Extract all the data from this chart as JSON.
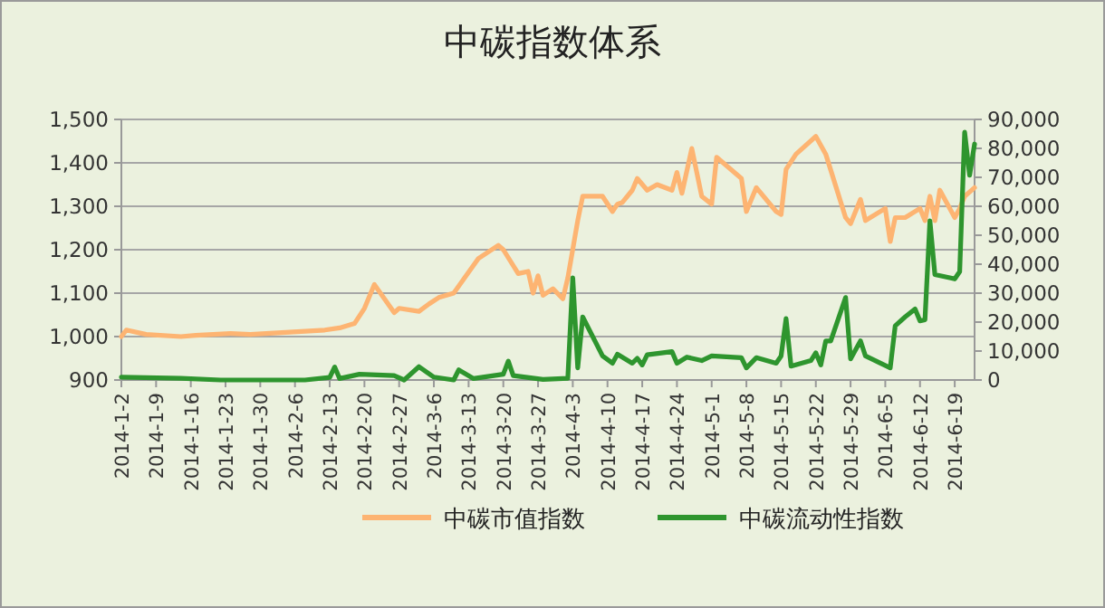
{
  "chart_data": {
    "type": "line",
    "title": "中碳指数体系",
    "xlim": [
      "2014-01-02",
      "2014-06-23"
    ],
    "xticks": [
      {
        "value": "2014-01-02",
        "label": "2014-1-2"
      },
      {
        "value": "2014-01-09",
        "label": "2014-1-9"
      },
      {
        "value": "2014-01-16",
        "label": "2014-1-16"
      },
      {
        "value": "2014-01-23",
        "label": "2014-1-23"
      },
      {
        "value": "2014-01-30",
        "label": "2014-1-30"
      },
      {
        "value": "2014-02-06",
        "label": "2014-2-6"
      },
      {
        "value": "2014-02-13",
        "label": "2014-2-13"
      },
      {
        "value": "2014-02-20",
        "label": "2014-2-20"
      },
      {
        "value": "2014-02-27",
        "label": "2014-2-27"
      },
      {
        "value": "2014-03-06",
        "label": "2014-3-6"
      },
      {
        "value": "2014-03-13",
        "label": "2014-3-13"
      },
      {
        "value": "2014-03-20",
        "label": "2014-3-20"
      },
      {
        "value": "2014-03-27",
        "label": "2014-3-27"
      },
      {
        "value": "2014-04-03",
        "label": "2014-4-3"
      },
      {
        "value": "2014-04-10",
        "label": "2014-4-10"
      },
      {
        "value": "2014-04-17",
        "label": "2014-4-17"
      },
      {
        "value": "2014-04-24",
        "label": "2014-4-24"
      },
      {
        "value": "2014-05-01",
        "label": "2014-5-1"
      },
      {
        "value": "2014-05-08",
        "label": "2014-5-8"
      },
      {
        "value": "2014-05-15",
        "label": "2014-5-15"
      },
      {
        "value": "2014-05-22",
        "label": "2014-5-22"
      },
      {
        "value": "2014-05-29",
        "label": "2014-5-29"
      },
      {
        "value": "2014-06-05",
        "label": "2014-6-5"
      },
      {
        "value": "2014-06-12",
        "label": "2014-6-12"
      },
      {
        "value": "2014-06-19",
        "label": "2014-6-19"
      }
    ],
    "ylim": [
      900,
      1500
    ],
    "yticks": [
      {
        "value": 900,
        "label": "900"
      },
      {
        "value": 1000,
        "label": "1,000"
      },
      {
        "value": 1100,
        "label": "1,100"
      },
      {
        "value": 1200,
        "label": "1,200"
      },
      {
        "value": 1300,
        "label": "1,300"
      },
      {
        "value": 1400,
        "label": "1,400"
      },
      {
        "value": 1500,
        "label": "1,500"
      }
    ],
    "y2lim": [
      0,
      90000
    ],
    "y2ticks": [
      {
        "value": 0,
        "label": "0"
      },
      {
        "value": 10000,
        "label": "10,000"
      },
      {
        "value": 20000,
        "label": "20,000"
      },
      {
        "value": 30000,
        "label": "30,000"
      },
      {
        "value": 40000,
        "label": "40,000"
      },
      {
        "value": 50000,
        "label": "50,000"
      },
      {
        "value": 60000,
        "label": "60,000"
      },
      {
        "value": 70000,
        "label": "70,000"
      },
      {
        "value": 80000,
        "label": "80,000"
      },
      {
        "value": 90000,
        "label": "90,000"
      }
    ],
    "grid": "y",
    "legend": "bottom",
    "series": [
      {
        "name": "中碳市值指数",
        "color": "#fdb472",
        "x": [
          "2014-01-02",
          "2014-01-03",
          "2014-01-07",
          "2014-01-14",
          "2014-01-17",
          "2014-01-24",
          "2014-01-28",
          "2014-02-12",
          "2014-02-15",
          "2014-02-18",
          "2014-02-20",
          "2014-02-22",
          "2014-02-26",
          "2014-02-27",
          "2014-03-03",
          "2014-03-05",
          "2014-03-07",
          "2014-03-10",
          "2014-03-15",
          "2014-03-19",
          "2014-03-20",
          "2014-03-23",
          "2014-03-25",
          "2014-03-26",
          "2014-03-27",
          "2014-03-28",
          "2014-03-30",
          "2014-04-01",
          "2014-04-02",
          "2014-04-04",
          "2014-04-05",
          "2014-04-09",
          "2014-04-11",
          "2014-04-12",
          "2014-04-13",
          "2014-04-15",
          "2014-04-16",
          "2014-04-18",
          "2014-04-20",
          "2014-04-23",
          "2014-04-24",
          "2014-04-25",
          "2014-04-27",
          "2014-04-29",
          "2014-05-01",
          "2014-05-02",
          "2014-05-07",
          "2014-05-08",
          "2014-05-10",
          "2014-05-14",
          "2014-05-15",
          "2014-05-16",
          "2014-05-18",
          "2014-05-22",
          "2014-05-24",
          "2014-05-28",
          "2014-05-29",
          "2014-05-31",
          "2014-06-01",
          "2014-06-05",
          "2014-06-06",
          "2014-06-07",
          "2014-06-09",
          "2014-06-12",
          "2014-06-13",
          "2014-06-14",
          "2014-06-15",
          "2014-06-16",
          "2014-06-19",
          "2014-06-20",
          "2014-06-21",
          "2014-06-23"
        ],
        "values": [
          1000,
          1015,
          1005,
          1000,
          1003,
          1007,
          1005,
          1015,
          1020,
          1030,
          1065,
          1120,
          1055,
          1065,
          1058,
          1075,
          1090,
          1100,
          1180,
          1210,
          1200,
          1145,
          1150,
          1100,
          1140,
          1095,
          1110,
          1087,
          1135,
          1267,
          1323,
          1323,
          1288,
          1305,
          1309,
          1337,
          1364,
          1337,
          1350,
          1337,
          1378,
          1330,
          1433,
          1323,
          1305,
          1413,
          1364,
          1288,
          1343,
          1288,
          1281,
          1385,
          1420,
          1461,
          1420,
          1274,
          1260,
          1316,
          1267,
          1295,
          1219,
          1274,
          1274,
          1295,
          1267,
          1323,
          1267,
          1337,
          1274,
          1295,
          1323,
          1343
        ]
      },
      {
        "name": "中碳流动性指数",
        "color": "#2e952e",
        "axis": "y2",
        "x": [
          "2014-01-02",
          "2014-01-14",
          "2014-01-22",
          "2014-01-29",
          "2014-02-08",
          "2014-02-13",
          "2014-02-14",
          "2014-02-15",
          "2014-02-19",
          "2014-02-26",
          "2014-02-28",
          "2014-03-03",
          "2014-03-06",
          "2014-03-10",
          "2014-03-11",
          "2014-03-13",
          "2014-03-14",
          "2014-03-20",
          "2014-03-21",
          "2014-03-22",
          "2014-03-28",
          "2014-04-02",
          "2014-04-03",
          "2014-04-04",
          "2014-04-05",
          "2014-04-09",
          "2014-04-11",
          "2014-04-12",
          "2014-04-15",
          "2014-04-16",
          "2014-04-17",
          "2014-04-18",
          "2014-04-23",
          "2014-04-24",
          "2014-04-26",
          "2014-04-29",
          "2014-05-01",
          "2014-05-07",
          "2014-05-08",
          "2014-05-10",
          "2014-05-14",
          "2014-05-15",
          "2014-05-16",
          "2014-05-17",
          "2014-05-21",
          "2014-05-22",
          "2014-05-23",
          "2014-05-24",
          "2014-05-25",
          "2014-05-28",
          "2014-05-29",
          "2014-05-31",
          "2014-06-01",
          "2014-06-06",
          "2014-06-07",
          "2014-06-09",
          "2014-06-11",
          "2014-06-12",
          "2014-06-13",
          "2014-06-14",
          "2014-06-15",
          "2014-06-18",
          "2014-06-19",
          "2014-06-20",
          "2014-06-21",
          "2014-06-22",
          "2014-06-23"
        ],
        "values": [
          1000,
          600,
          0,
          0,
          0,
          900,
          4500,
          500,
          2000,
          1500,
          0,
          4600,
          1000,
          0,
          3500,
          1500,
          500,
          2000,
          6500,
          1500,
          200,
          600,
          35300,
          4200,
          21800,
          8300,
          5800,
          8900,
          5800,
          7500,
          5200,
          8700,
          9800,
          5800,
          7900,
          6700,
          8300,
          7700,
          4200,
          7700,
          5800,
          8300,
          21200,
          4800,
          6700,
          9400,
          5200,
          13500,
          13500,
          28500,
          7300,
          13500,
          8300,
          4200,
          18700,
          21800,
          24500,
          20400,
          20800,
          55000,
          36400,
          35300,
          34900,
          37400,
          85600,
          70700,
          81500
        ]
      }
    ]
  }
}
